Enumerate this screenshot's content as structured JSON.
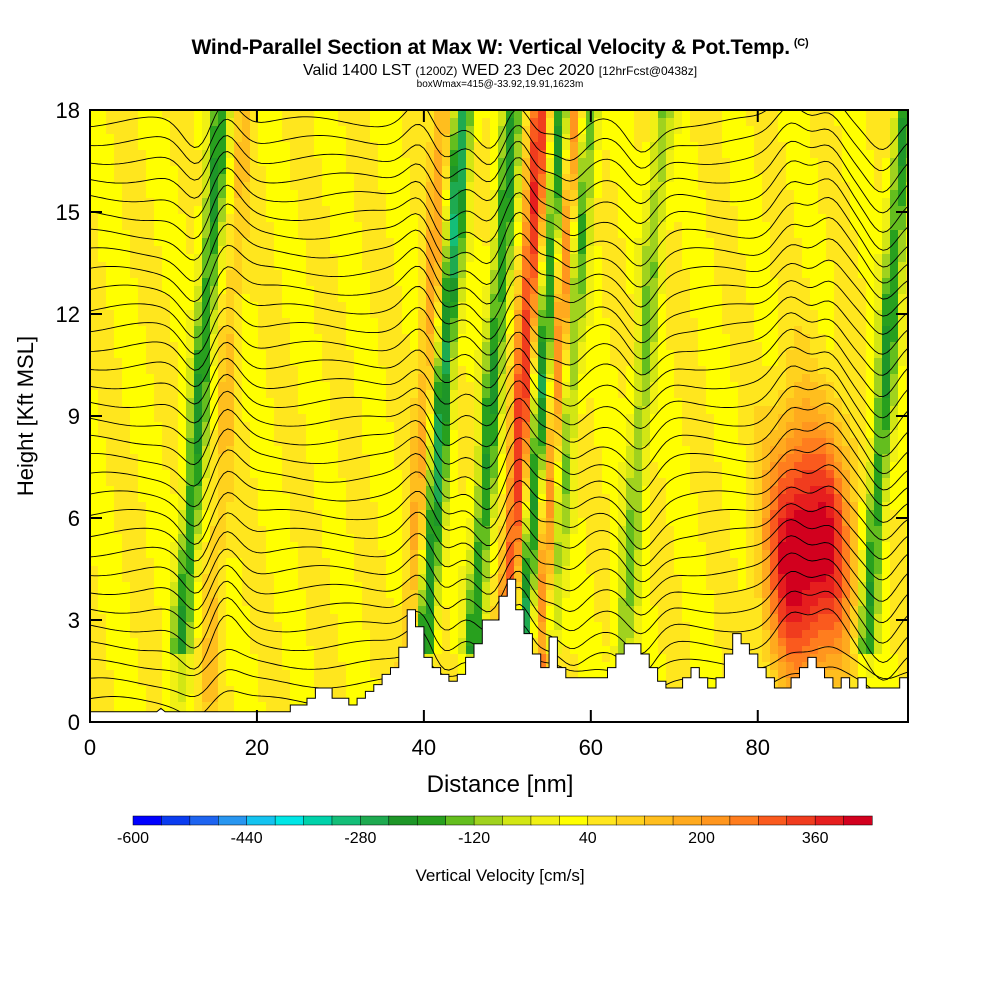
{
  "title": {
    "main": "Wind-Parallel Section at Max W: Vertical Velocity & Pot.Temp.",
    "copyright": "(C)",
    "valid_prefix": "Valid 1400 LST",
    "valid_z": "(1200Z)",
    "valid_date": "WED 23 Dec 2020",
    "forecast": "[12hrFcst@0438z]",
    "box_info": "boxWmax=415@-33.92,19.91,1623m"
  },
  "chart_data": {
    "type": "heatmap",
    "title": "Wind-Parallel Section at Max W: Vertical Velocity & Pot.Temp.",
    "xlabel": "Distance [nm]",
    "ylabel": "Height [Kft MSL]",
    "xlim": [
      0,
      98
    ],
    "ylim": [
      0,
      18
    ],
    "x_ticks": [
      0,
      20,
      40,
      60,
      80
    ],
    "y_ticks": [
      0,
      3,
      6,
      9,
      12,
      15,
      18
    ],
    "colorbar": {
      "label": "Vertical Velocity [cm/s]",
      "min": -600,
      "max": 440,
      "step": 40,
      "tick_labels": [
        "-600",
        "-440",
        "-280",
        "-120",
        "40",
        "200",
        "360"
      ],
      "colors": [
        "#0000ff",
        "#0a3cf0",
        "#1e64f0",
        "#2896f0",
        "#14c3f0",
        "#00e6e6",
        "#00d2aa",
        "#14be78",
        "#1eaa50",
        "#1e9628",
        "#28a01e",
        "#64be1e",
        "#a0d21e",
        "#d2e614",
        "#f0f014",
        "#ffff00",
        "#ffe61e",
        "#ffd21e",
        "#ffbe1e",
        "#ffaa1e",
        "#ff961e",
        "#ff7d1e",
        "#fa5a1e",
        "#f03c1e",
        "#e61e1e",
        "#d2001e"
      ]
    },
    "contour_field": "Potential Temperature",
    "updraft_columns": [
      {
        "x": 16,
        "w_max": 120
      },
      {
        "x": 40,
        "w_max": 200
      },
      {
        "x": 51.5,
        "w_max": 360
      },
      {
        "x": 55.5,
        "w_max": 360
      },
      {
        "x": 84,
        "w_max": 415
      },
      {
        "x": 88.5,
        "w_max": 360
      }
    ],
    "downdraft_columns": [
      {
        "x": 13,
        "w_min": -200
      },
      {
        "x": 42,
        "w_min": -280
      },
      {
        "x": 48,
        "w_min": -200
      },
      {
        "x": 54,
        "w_min": -280
      },
      {
        "x": 57,
        "w_min": -200
      },
      {
        "x": 66,
        "w_min": -120
      },
      {
        "x": 95,
        "w_min": -200
      }
    ],
    "terrain_profile": [
      [
        0,
        0.3
      ],
      [
        8,
        0.3
      ],
      [
        8.5,
        0.4
      ],
      [
        9,
        0.3
      ],
      [
        24,
        0.3
      ],
      [
        24,
        0.5
      ],
      [
        26,
        0.5
      ],
      [
        26,
        0.7
      ],
      [
        27,
        0.7
      ],
      [
        27,
        1.0
      ],
      [
        29,
        1.0
      ],
      [
        29,
        0.7
      ],
      [
        31,
        0.7
      ],
      [
        31,
        0.5
      ],
      [
        32,
        0.5
      ],
      [
        32,
        0.7
      ],
      [
        33,
        0.7
      ],
      [
        33,
        0.9
      ],
      [
        34,
        0.9
      ],
      [
        34,
        1.1
      ],
      [
        35,
        1.1
      ],
      [
        35,
        1.4
      ],
      [
        36,
        1.4
      ],
      [
        36,
        1.6
      ],
      [
        37,
        1.6
      ],
      [
        37,
        2.2
      ],
      [
        38,
        2.2
      ],
      [
        38,
        3.3
      ],
      [
        39,
        3.3
      ],
      [
        39,
        2.8
      ],
      [
        40,
        2.8
      ],
      [
        40,
        1.9
      ],
      [
        41,
        1.9
      ],
      [
        41,
        1.6
      ],
      [
        42,
        1.6
      ],
      [
        42,
        1.4
      ],
      [
        43,
        1.4
      ],
      [
        43,
        1.2
      ],
      [
        44,
        1.2
      ],
      [
        44,
        1.4
      ],
      [
        45,
        1.4
      ],
      [
        45,
        1.9
      ],
      [
        46,
        1.9
      ],
      [
        46,
        2.3
      ],
      [
        47,
        2.3
      ],
      [
        47,
        3.0
      ],
      [
        49,
        3.0
      ],
      [
        49,
        3.7
      ],
      [
        50,
        3.7
      ],
      [
        50,
        4.2
      ],
      [
        51,
        4.2
      ],
      [
        51,
        3.3
      ],
      [
        52,
        3.3
      ],
      [
        52,
        2.6
      ],
      [
        53,
        2.6
      ],
      [
        53,
        2.0
      ],
      [
        54,
        2.0
      ],
      [
        54,
        1.6
      ],
      [
        55,
        1.6
      ],
      [
        55,
        2.5
      ],
      [
        56,
        2.5
      ],
      [
        56,
        1.6
      ],
      [
        57,
        1.6
      ],
      [
        57,
        1.3
      ],
      [
        62,
        1.3
      ],
      [
        62,
        1.6
      ],
      [
        63,
        1.6
      ],
      [
        63,
        2.0
      ],
      [
        64,
        2.0
      ],
      [
        64,
        2.3
      ],
      [
        66,
        2.3
      ],
      [
        66,
        2.0
      ],
      [
        67,
        2.0
      ],
      [
        67,
        1.6
      ],
      [
        68,
        1.6
      ],
      [
        68,
        1.2
      ],
      [
        69,
        1.2
      ],
      [
        69,
        1.0
      ],
      [
        71,
        1.0
      ],
      [
        71,
        1.3
      ],
      [
        72,
        1.3
      ],
      [
        72,
        1.6
      ],
      [
        73,
        1.6
      ],
      [
        73,
        1.3
      ],
      [
        74,
        1.3
      ],
      [
        74,
        1.0
      ],
      [
        75,
        1.0
      ],
      [
        75,
        1.3
      ],
      [
        76,
        1.3
      ],
      [
        76,
        2.0
      ],
      [
        77,
        2.0
      ],
      [
        77,
        2.6
      ],
      [
        78,
        2.6
      ],
      [
        78,
        2.3
      ],
      [
        79,
        2.3
      ],
      [
        79,
        2.0
      ],
      [
        80,
        2.0
      ],
      [
        80,
        1.6
      ],
      [
        81,
        1.6
      ],
      [
        81,
        1.3
      ],
      [
        82,
        1.3
      ],
      [
        82,
        1.0
      ],
      [
        84,
        1.0
      ],
      [
        84,
        1.3
      ],
      [
        85,
        1.3
      ],
      [
        85,
        1.6
      ],
      [
        86,
        1.6
      ],
      [
        86,
        1.9
      ],
      [
        87,
        1.9
      ],
      [
        87,
        1.6
      ],
      [
        88,
        1.6
      ],
      [
        88,
        1.3
      ],
      [
        89,
        1.3
      ],
      [
        89,
        1.0
      ],
      [
        90,
        1.0
      ],
      [
        90,
        1.3
      ],
      [
        91,
        1.3
      ],
      [
        91,
        1.0
      ],
      [
        92,
        1.0
      ],
      [
        92,
        1.3
      ],
      [
        93,
        1.3
      ],
      [
        93,
        1.0
      ],
      [
        97,
        1.0
      ],
      [
        97,
        1.3
      ],
      [
        98,
        1.3
      ]
    ]
  }
}
